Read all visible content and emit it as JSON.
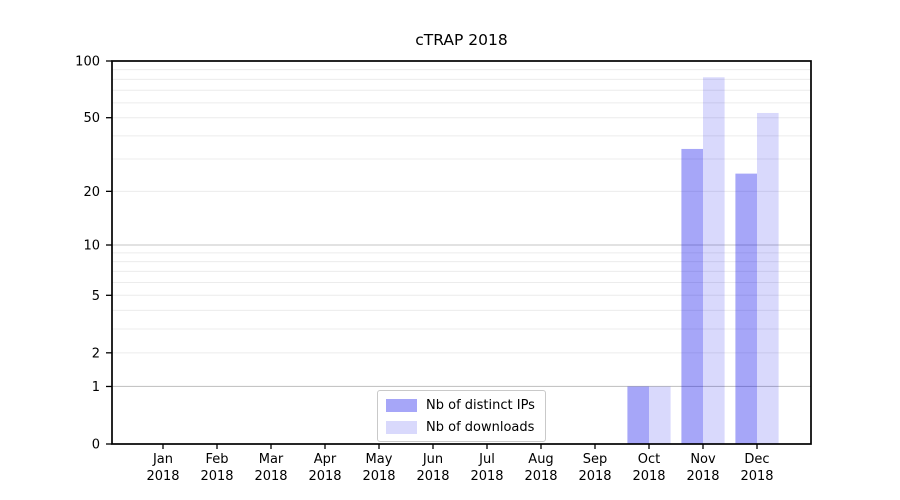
{
  "chart_data": {
    "type": "bar",
    "title": "cTRAP 2018",
    "categories": [
      "Jan",
      "Feb",
      "Mar",
      "Apr",
      "May",
      "Jun",
      "Jul",
      "Aug",
      "Sep",
      "Oct",
      "Nov",
      "Dec"
    ],
    "x_tick_year": "2018",
    "series": [
      {
        "name": "Nb of distinct IPs",
        "color": "rgba(0,0,235,0.35)",
        "values": [
          0,
          0,
          0,
          0,
          0,
          0,
          0,
          0,
          0,
          1,
          34,
          25
        ]
      },
      {
        "name": "Nb of downloads",
        "color": "rgba(0,0,235,0.15)",
        "values": [
          0,
          0,
          0,
          0,
          0,
          0,
          0,
          0,
          0,
          1,
          82,
          53
        ]
      }
    ],
    "y_ticks": [
      0,
      1,
      2,
      5,
      10,
      20,
      50,
      100
    ],
    "ylim": [
      0,
      100
    ],
    "y_scale": "log10(1+v)",
    "grid": {
      "shown": true,
      "minor_color": "#ececec",
      "major_color": "#c5c5c5",
      "major_at": [
        1,
        10,
        100
      ]
    },
    "legend_position": "lower center",
    "axis_color": "#000000"
  }
}
